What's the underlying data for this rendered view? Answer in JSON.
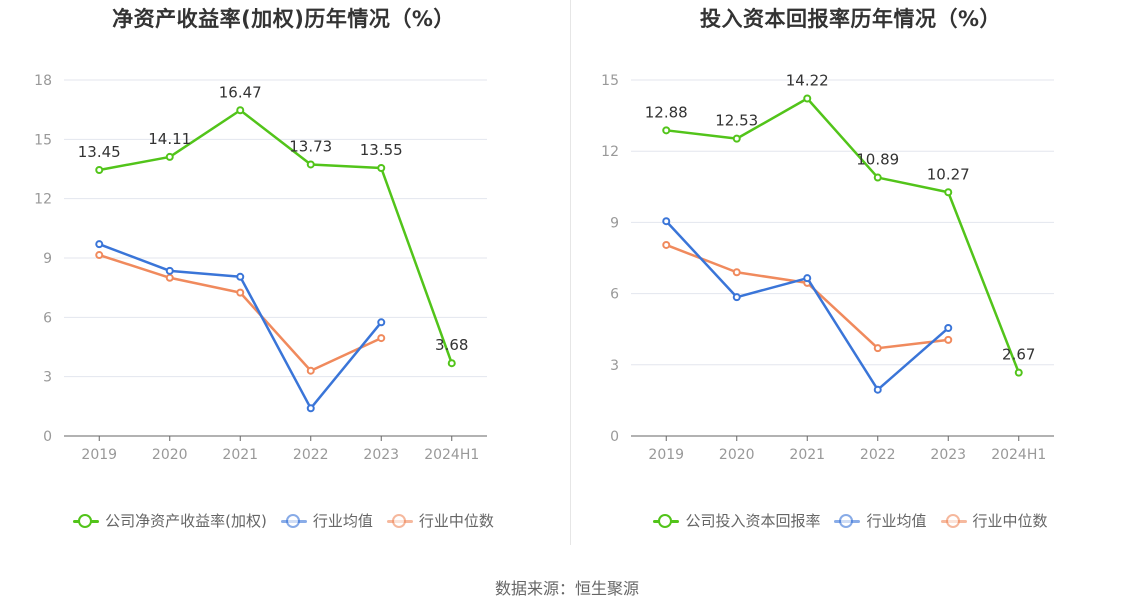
{
  "source": "数据来源：恒生聚源",
  "chart_data": [
    {
      "type": "line",
      "title": "净资产收益率(加权)历年情况（%）",
      "categories": [
        "2019",
        "2020",
        "2021",
        "2022",
        "2023",
        "2024H1"
      ],
      "ylim": [
        0,
        18
      ],
      "yticks": [
        0,
        3,
        6,
        9,
        12,
        15,
        18
      ],
      "grid": true,
      "legend_position": "bottom",
      "series": [
        {
          "name": "公司净资产收益率(加权)",
          "color": "#52c41a",
          "values": [
            13.45,
            14.11,
            16.47,
            13.73,
            13.55,
            3.68
          ],
          "labels": [
            "13.45",
            "14.11",
            "16.47",
            "13.73",
            "13.55",
            "3.68"
          ]
        },
        {
          "name": "行业均值",
          "color": "#3a75d8",
          "values": [
            9.7,
            8.35,
            8.05,
            1.4,
            5.75,
            null
          ]
        },
        {
          "name": "行业中位数",
          "color": "#f08a5d",
          "values": [
            9.15,
            8.0,
            7.25,
            3.3,
            4.95,
            null
          ]
        }
      ]
    },
    {
      "type": "line",
      "title": "投入资本回报率历年情况（%）",
      "categories": [
        "2019",
        "2020",
        "2021",
        "2022",
        "2023",
        "2024H1"
      ],
      "ylim": [
        0,
        15
      ],
      "yticks": [
        0,
        3,
        6,
        9,
        12,
        15
      ],
      "grid": true,
      "legend_position": "bottom",
      "series": [
        {
          "name": "公司投入资本回报率",
          "color": "#52c41a",
          "values": [
            12.88,
            12.53,
            14.22,
            10.89,
            10.27,
            2.67
          ],
          "labels": [
            "12.88",
            "12.53",
            "14.22",
            "10.89",
            "10.27",
            "2.67"
          ]
        },
        {
          "name": "行业均值",
          "color": "#3a75d8",
          "values": [
            9.05,
            5.85,
            6.65,
            1.95,
            4.55,
            null
          ]
        },
        {
          "name": "行业中位数",
          "color": "#f08a5d",
          "values": [
            8.05,
            6.9,
            6.45,
            3.7,
            4.05,
            null
          ]
        }
      ]
    }
  ]
}
